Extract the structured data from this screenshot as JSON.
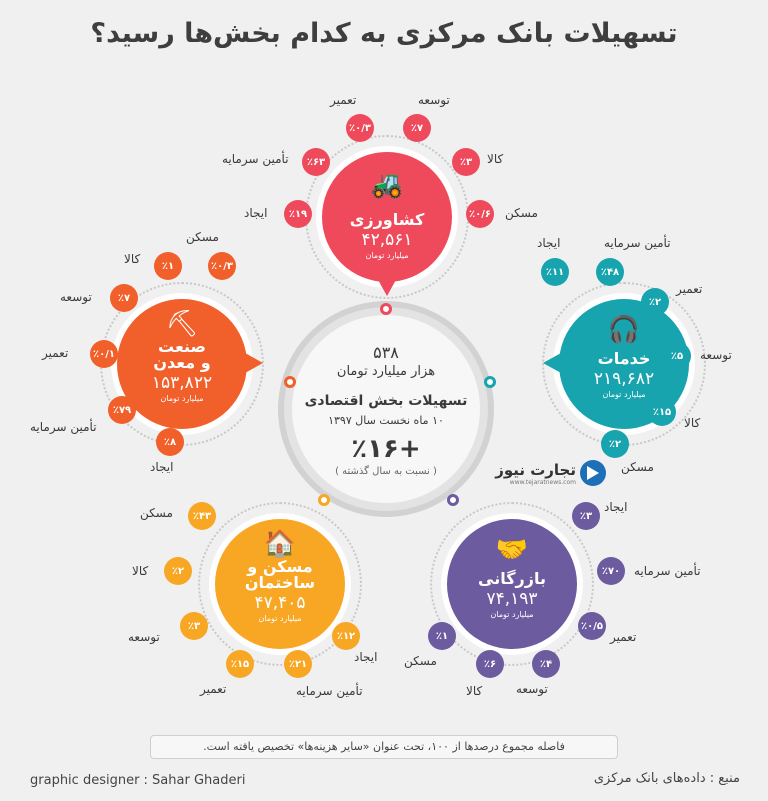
{
  "title": "تسهیلات بانک مرکزی به کدام بخش‌ها رسید؟",
  "center": {
    "total": "۵۳۸",
    "total_unit": "هزار میلیارد تومان",
    "heading": "تسهیلات بخش اقتصادی",
    "period": "۱۰ ماه نخست سال ۱۳۹۷",
    "growth": "+٪۱۶",
    "growth_note": "( نسبت به سال گذشته )"
  },
  "logo": {
    "name": "تجارت نیوز",
    "url": "www.tejaratnews.com"
  },
  "colors": {
    "agriculture": "#ef4a5b",
    "services": "#17a4ae",
    "industry": "#f15f2a",
    "housing": "#f7a724",
    "commerce": "#6c5b9e"
  },
  "sectors": {
    "agriculture": {
      "name": "کشاورزی",
      "value": "۴۲,۵۶۱",
      "unit": "میلیارد تومان",
      "icon": "tractor-icon",
      "items": [
        {
          "label": "تعمیر",
          "pct": "٪۰/۳"
        },
        {
          "label": "توسعه",
          "pct": "٪۷"
        },
        {
          "label": "تأمین سرمایه",
          "pct": "٪۶۳"
        },
        {
          "label": "کالا",
          "pct": "٪۳"
        },
        {
          "label": "ایجاد",
          "pct": "٪۱۹"
        },
        {
          "label": "مسکن",
          "pct": "٪۰/۶"
        }
      ]
    },
    "services": {
      "name": "خدمات",
      "value": "۲۱۹,۶۸۲",
      "unit": "میلیارد تومان",
      "icon": "headset-icon",
      "items": [
        {
          "label": "ایجاد",
          "pct": "٪۱۱"
        },
        {
          "label": "تأمین سرمایه",
          "pct": "٪۴۸"
        },
        {
          "label": "تعمیر",
          "pct": "٪۲"
        },
        {
          "label": "توسعه",
          "pct": "٪۵"
        },
        {
          "label": "کالا",
          "pct": "٪۱۵"
        },
        {
          "label": "مسکن",
          "pct": "٪۲"
        }
      ]
    },
    "industry": {
      "name": "صنعت و معدن",
      "name1": "صنعت",
      "name2": "و معدن",
      "value": "۱۵۳,۸۲۲",
      "unit": "میلیارد تومان",
      "icon": "mining-cart-icon",
      "items": [
        {
          "label": "مسکن",
          "pct": "٪۰/۳"
        },
        {
          "label": "کالا",
          "pct": "٪۱"
        },
        {
          "label": "توسعه",
          "pct": "٪۷"
        },
        {
          "label": "تعمیر",
          "pct": "٪۰/۱"
        },
        {
          "label": "تأمین سرمایه",
          "pct": "٪۷۹"
        },
        {
          "label": "ایجاد",
          "pct": "٪۸"
        }
      ]
    },
    "housing": {
      "name": "مسکن و ساختمان",
      "name1": "مسکن و",
      "name2": "ساختمان",
      "value": "۴۷,۴۰۵",
      "unit": "میلیارد تومان",
      "icon": "house-icon",
      "items": [
        {
          "label": "مسکن",
          "pct": "٪۴۳"
        },
        {
          "label": "کالا",
          "pct": "٪۲"
        },
        {
          "label": "توسعه",
          "pct": "٪۳"
        },
        {
          "label": "تعمیر",
          "pct": "٪۱۵"
        },
        {
          "label": "تأمین سرمایه",
          "pct": "٪۲۱"
        },
        {
          "label": "ایجاد",
          "pct": "٪۱۲"
        }
      ]
    },
    "commerce": {
      "name": "بازرگانی",
      "value": "۷۴,۱۹۳",
      "unit": "میلیارد تومان",
      "icon": "handshake-icon",
      "items": [
        {
          "label": "ایجاد",
          "pct": "٪۳"
        },
        {
          "label": "تأمین سرمایه",
          "pct": "٪۷۰"
        },
        {
          "label": "تعمیر",
          "pct": "٪۰/۵"
        },
        {
          "label": "توسعه",
          "pct": "٪۴"
        },
        {
          "label": "کالا",
          "pct": "٪۶"
        },
        {
          "label": "مسکن",
          "pct": "٪۱"
        }
      ]
    }
  },
  "note": "فاصله مجموع درصدها از ۱۰۰، تحت عنوان «سایر هزینه‌ها» تخصیص یافته است.",
  "footer": {
    "designer": "graphic designer : Sahar Ghaderi",
    "source": "منبع : داده‌های بانک مرکزی"
  }
}
